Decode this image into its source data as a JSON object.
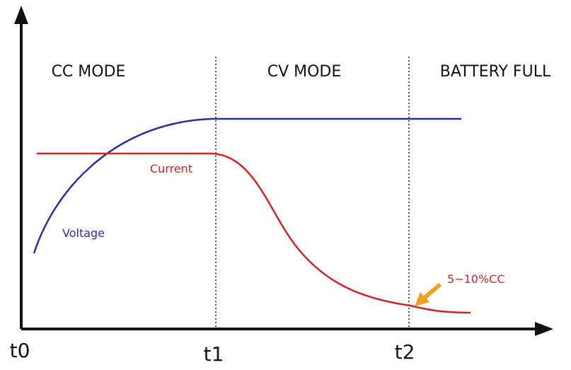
{
  "modes": [
    "CC MODE",
    "CV MODE",
    "BATTERY FULL"
  ],
  "curves": {
    "voltage": "Voltage",
    "current": "Current"
  },
  "times": [
    "t0",
    "t1",
    "t2"
  ],
  "annotation": "5~10%CC"
}
